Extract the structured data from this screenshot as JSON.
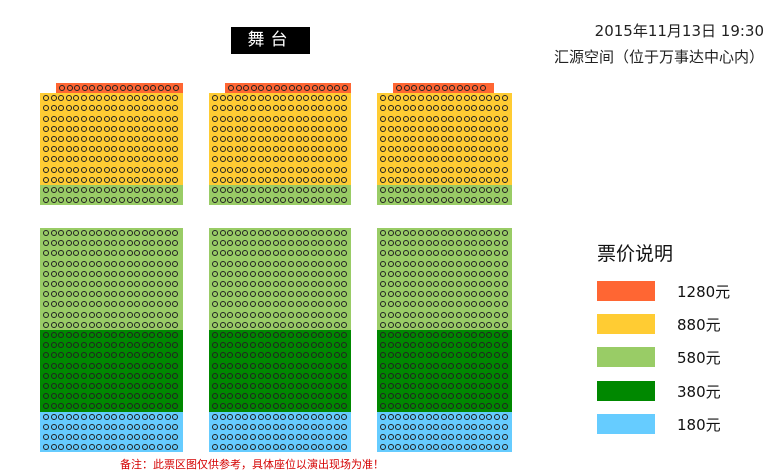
{
  "stage_label": "舞台",
  "event": {
    "datetime": "2015年11月13日 19:30",
    "venue": "汇源空间（位于万事达中心内）"
  },
  "legend": {
    "title": "票价说明",
    "items": [
      {
        "label": "1280元",
        "color": "#ff6633"
      },
      {
        "label": "880元",
        "color": "#ffcc33"
      },
      {
        "label": "580元",
        "color": "#99cc66"
      },
      {
        "label": "380元",
        "color": "#008800"
      },
      {
        "label": "180元",
        "color": "#66ccff"
      }
    ]
  },
  "note": "备注：此票区图仅供参考，具体座位以演出现场为准！",
  "seat_map": {
    "front_blocks": [
      {
        "zones": [
          {
            "price": "1280元",
            "rows": 1
          },
          {
            "price": "880元",
            "rows": 9
          },
          {
            "price": "580元",
            "rows": 2
          }
        ]
      },
      {
        "zones": [
          {
            "price": "1280元",
            "rows": 1
          },
          {
            "price": "880元",
            "rows": 9
          },
          {
            "price": "580元",
            "rows": 2
          }
        ]
      },
      {
        "zones": [
          {
            "price": "1280元",
            "rows": 1
          },
          {
            "price": "880元",
            "rows": 9
          },
          {
            "price": "580元",
            "rows": 2
          }
        ]
      }
    ],
    "rear_blocks": [
      {
        "zones": [
          {
            "price": "580元",
            "rows": 10
          },
          {
            "price": "380元",
            "rows": 8
          },
          {
            "price": "180元",
            "rows": 4
          }
        ]
      },
      {
        "zones": [
          {
            "price": "580元",
            "rows": 10
          },
          {
            "price": "380元",
            "rows": 8
          },
          {
            "price": "180元",
            "rows": 4
          }
        ]
      },
      {
        "zones": [
          {
            "price": "580元",
            "rows": 10
          },
          {
            "price": "380元",
            "rows": 8
          },
          {
            "price": "180元",
            "rows": 4
          }
        ]
      }
    ]
  }
}
